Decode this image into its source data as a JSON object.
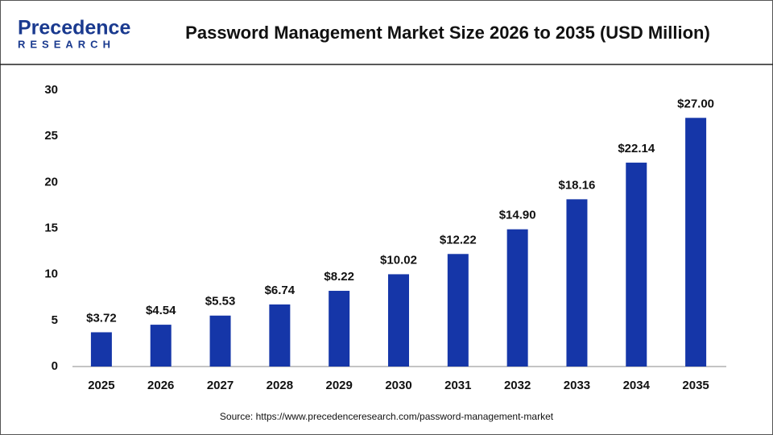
{
  "logo": {
    "name": "Precedence",
    "sub": "RESEARCH"
  },
  "chart_data": {
    "type": "bar",
    "title": "Password Management Market Size 2026 to 2035 (USD Million)",
    "source": "Source: https://www.precedenceresearch.com/password-management-market",
    "categories": [
      "2025",
      "2026",
      "2027",
      "2028",
      "2029",
      "2030",
      "2031",
      "2032",
      "2033",
      "2034",
      "2035"
    ],
    "values": [
      3.72,
      4.54,
      5.53,
      6.74,
      8.22,
      10.02,
      12.22,
      14.9,
      18.16,
      22.14,
      27.0
    ],
    "value_labels": [
      "$3.72",
      "$4.54",
      "$5.53",
      "$6.74",
      "$8.22",
      "$10.02",
      "$12.22",
      "$14.90",
      "$18.16",
      "$22.14",
      "$27.00"
    ],
    "color": "#1536a8",
    "ylim": [
      0,
      30
    ],
    "yticks": [
      0,
      5,
      10,
      15,
      20,
      25,
      30
    ],
    "grid": false
  }
}
